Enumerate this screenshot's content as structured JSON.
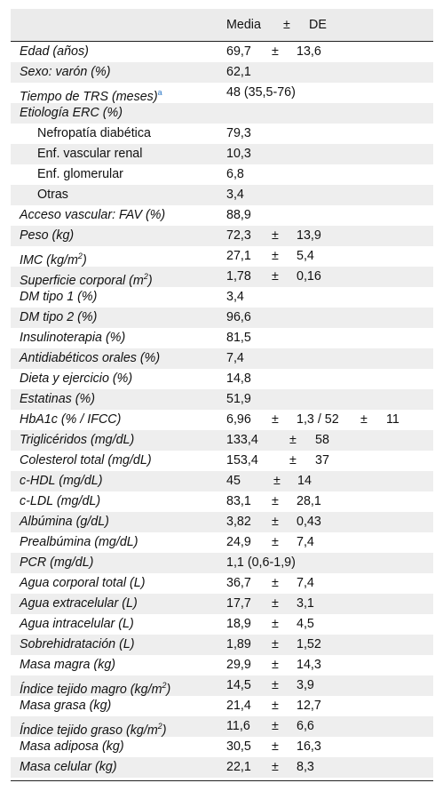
{
  "header": {
    "media": "Media",
    "pm": "±",
    "de": "DE"
  },
  "rows": [
    {
      "label": "Edad (años)",
      "vals": [
        "69,7",
        "±",
        "13,6"
      ]
    },
    {
      "label": "Sexo: varón (%)",
      "vals": [
        "62,1"
      ]
    },
    {
      "label": "Tiempo de TRS (meses)",
      "note": "a",
      "vals": [
        "48 (35,5-76)"
      ]
    },
    {
      "label": "Etiología ERC (%)",
      "vals": []
    },
    {
      "label": "Nefropatía diabética",
      "sub": true,
      "vals": [
        "79,3"
      ]
    },
    {
      "label": "Enf. vascular renal",
      "sub": true,
      "vals": [
        "10,3"
      ]
    },
    {
      "label": "Enf. glomerular",
      "sub": true,
      "vals": [
        "6,8"
      ]
    },
    {
      "label": "Otras",
      "sub": true,
      "vals": [
        "3,4"
      ]
    },
    {
      "label": "Acceso vascular: FAV (%)",
      "vals": [
        "88,9"
      ]
    },
    {
      "label": "Peso (kg)",
      "vals": [
        "72,3",
        "±",
        "13,9"
      ]
    },
    {
      "label": "IMC (kg/m",
      "sup": "2",
      "after": ")",
      "vals": [
        "27,1",
        "±",
        "5,4"
      ]
    },
    {
      "label": "Superficie corporal (m",
      "sup": "2",
      "after": ")",
      "vals": [
        "1,78",
        "±",
        "0,16"
      ]
    },
    {
      "label": "DM tipo 1 (%)",
      "vals": [
        "3,4"
      ]
    },
    {
      "label": "DM tipo 2 (%)",
      "vals": [
        "96,6"
      ]
    },
    {
      "label": "Insulinoterapia (%)",
      "vals": [
        "81,5"
      ]
    },
    {
      "label": "Antidiabéticos orales (%)",
      "vals": [
        "7,4"
      ]
    },
    {
      "label": "Dieta y ejercicio (%)",
      "vals": [
        "14,8"
      ]
    },
    {
      "label": "Estatinas (%)",
      "vals": [
        "51,9"
      ]
    },
    {
      "label": "HbA1c (% / IFCC)",
      "vals": [
        "6,96",
        "±",
        "1,3 / 52",
        "±",
        "11"
      ]
    },
    {
      "label": "Triglicéridos (mg/dL)",
      "vals": [
        "133,4",
        "±",
        "58"
      ]
    },
    {
      "label": "Colesterol total (mg/dL)",
      "vals": [
        "153,4",
        "±",
        "37"
      ]
    },
    {
      "label": "c-HDL (mg/dL)",
      "vals": [
        "45",
        "±",
        "14"
      ]
    },
    {
      "label": "c-LDL (mg/dL)",
      "vals": [
        "83,1",
        "±",
        "28,1"
      ]
    },
    {
      "label": "Albúmina (g/dL)",
      "vals": [
        "3,82",
        "±",
        "0,43"
      ]
    },
    {
      "label": "Prealbúmina (mg/dL)",
      "vals": [
        "24,9",
        "±",
        "7,4"
      ]
    },
    {
      "label": "PCR (mg/dL)",
      "vals": [
        "1,1 (0,6-1,9)"
      ]
    },
    {
      "label": "Agua corporal total (L)",
      "vals": [
        "36,7",
        "±",
        "7,4"
      ]
    },
    {
      "label": "Agua extracelular (L)",
      "vals": [
        "17,7",
        "±",
        "3,1"
      ]
    },
    {
      "label": "Agua intracelular (L)",
      "vals": [
        "18,9",
        "±",
        "4,5"
      ]
    },
    {
      "label": "Sobrehidratación (L)",
      "vals": [
        "1,89",
        "±",
        "1,52"
      ]
    },
    {
      "label": "Masa magra (kg)",
      "vals": [
        "29,9",
        "±",
        "14,3"
      ]
    },
    {
      "label": "Índice tejido magro (kg/m",
      "sup": "2",
      "after": ")",
      "vals": [
        "14,5",
        "±",
        "3,9"
      ]
    },
    {
      "label": "Masa grasa (kg)",
      "vals": [
        "21,4",
        "±",
        "12,7"
      ]
    },
    {
      "label": "Índice tejido graso (kg/m",
      "sup": "2",
      "after": ")",
      "vals": [
        "11,6",
        "±",
        "6,6"
      ]
    },
    {
      "label": "Masa adiposa (kg)",
      "vals": [
        "30,5",
        "±",
        "16,3"
      ]
    },
    {
      "label": "Masa celular (kg)",
      "vals": [
        "22,1",
        "±",
        "8,3"
      ]
    }
  ]
}
